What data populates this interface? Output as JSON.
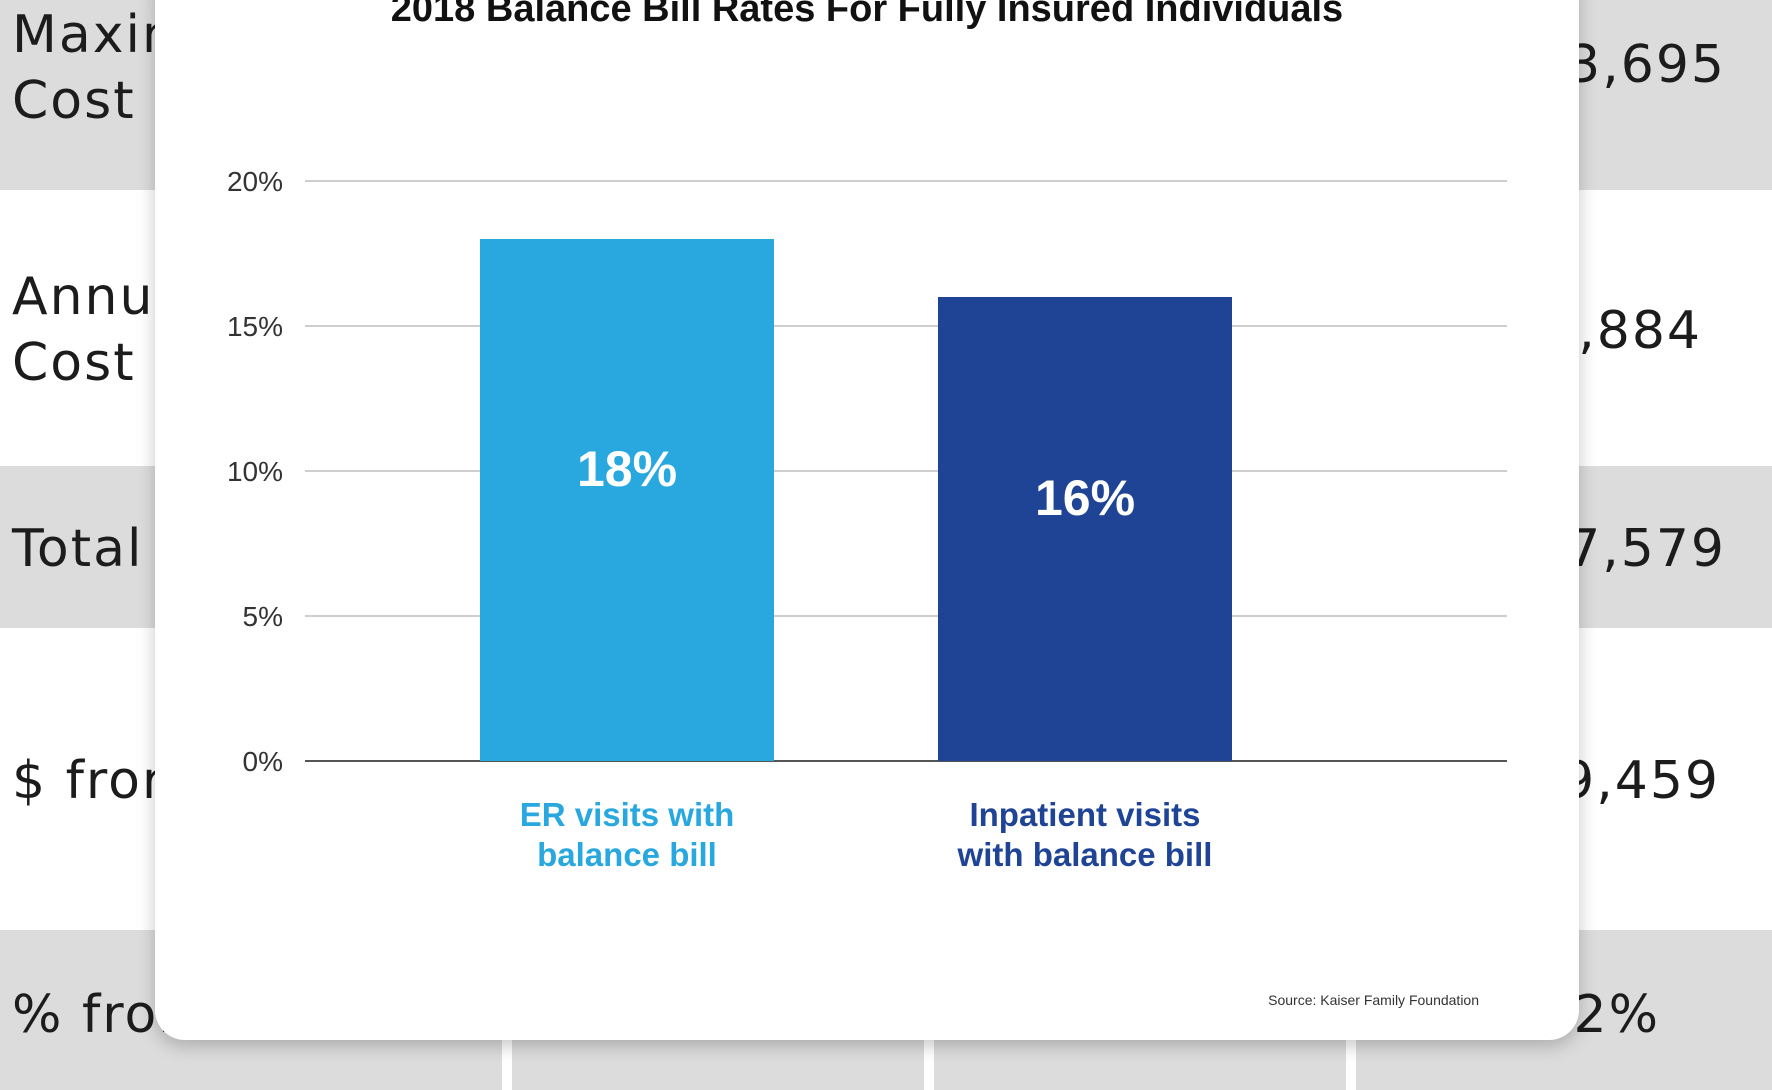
{
  "table": {
    "rows": [
      {
        "label": "Maxin\nCost",
        "value": "3,695",
        "shaded": true
      },
      {
        "label": "Annu\nCost",
        "value": ",884",
        "shaded": false
      },
      {
        "label": "Total",
        "value": "7,579",
        "shaded": true
      },
      {
        "label": "$ fror",
        "value": "9,459",
        "shaded": false
      },
      {
        "label": "% fror",
        "value": "2%",
        "shaded": true
      }
    ]
  },
  "chart_data": {
    "type": "bar",
    "title": "2018 Balance Bill Rates For Fully Insured Individuals",
    "categories": [
      "ER visits with\nbalance bill",
      "Inpatient visits\nwith balance bill"
    ],
    "values": [
      18,
      16
    ],
    "data_labels": [
      "18%",
      "16%"
    ],
    "colors": [
      "#29a8e0",
      "#1f4496"
    ],
    "yticks": [
      "0%",
      "5%",
      "10%",
      "15%",
      "20%"
    ],
    "ytick_values": [
      0,
      5,
      10,
      15,
      20
    ],
    "ylim": [
      0,
      20
    ],
    "grid": true,
    "source": "Source: Kaiser Family Foundation"
  }
}
